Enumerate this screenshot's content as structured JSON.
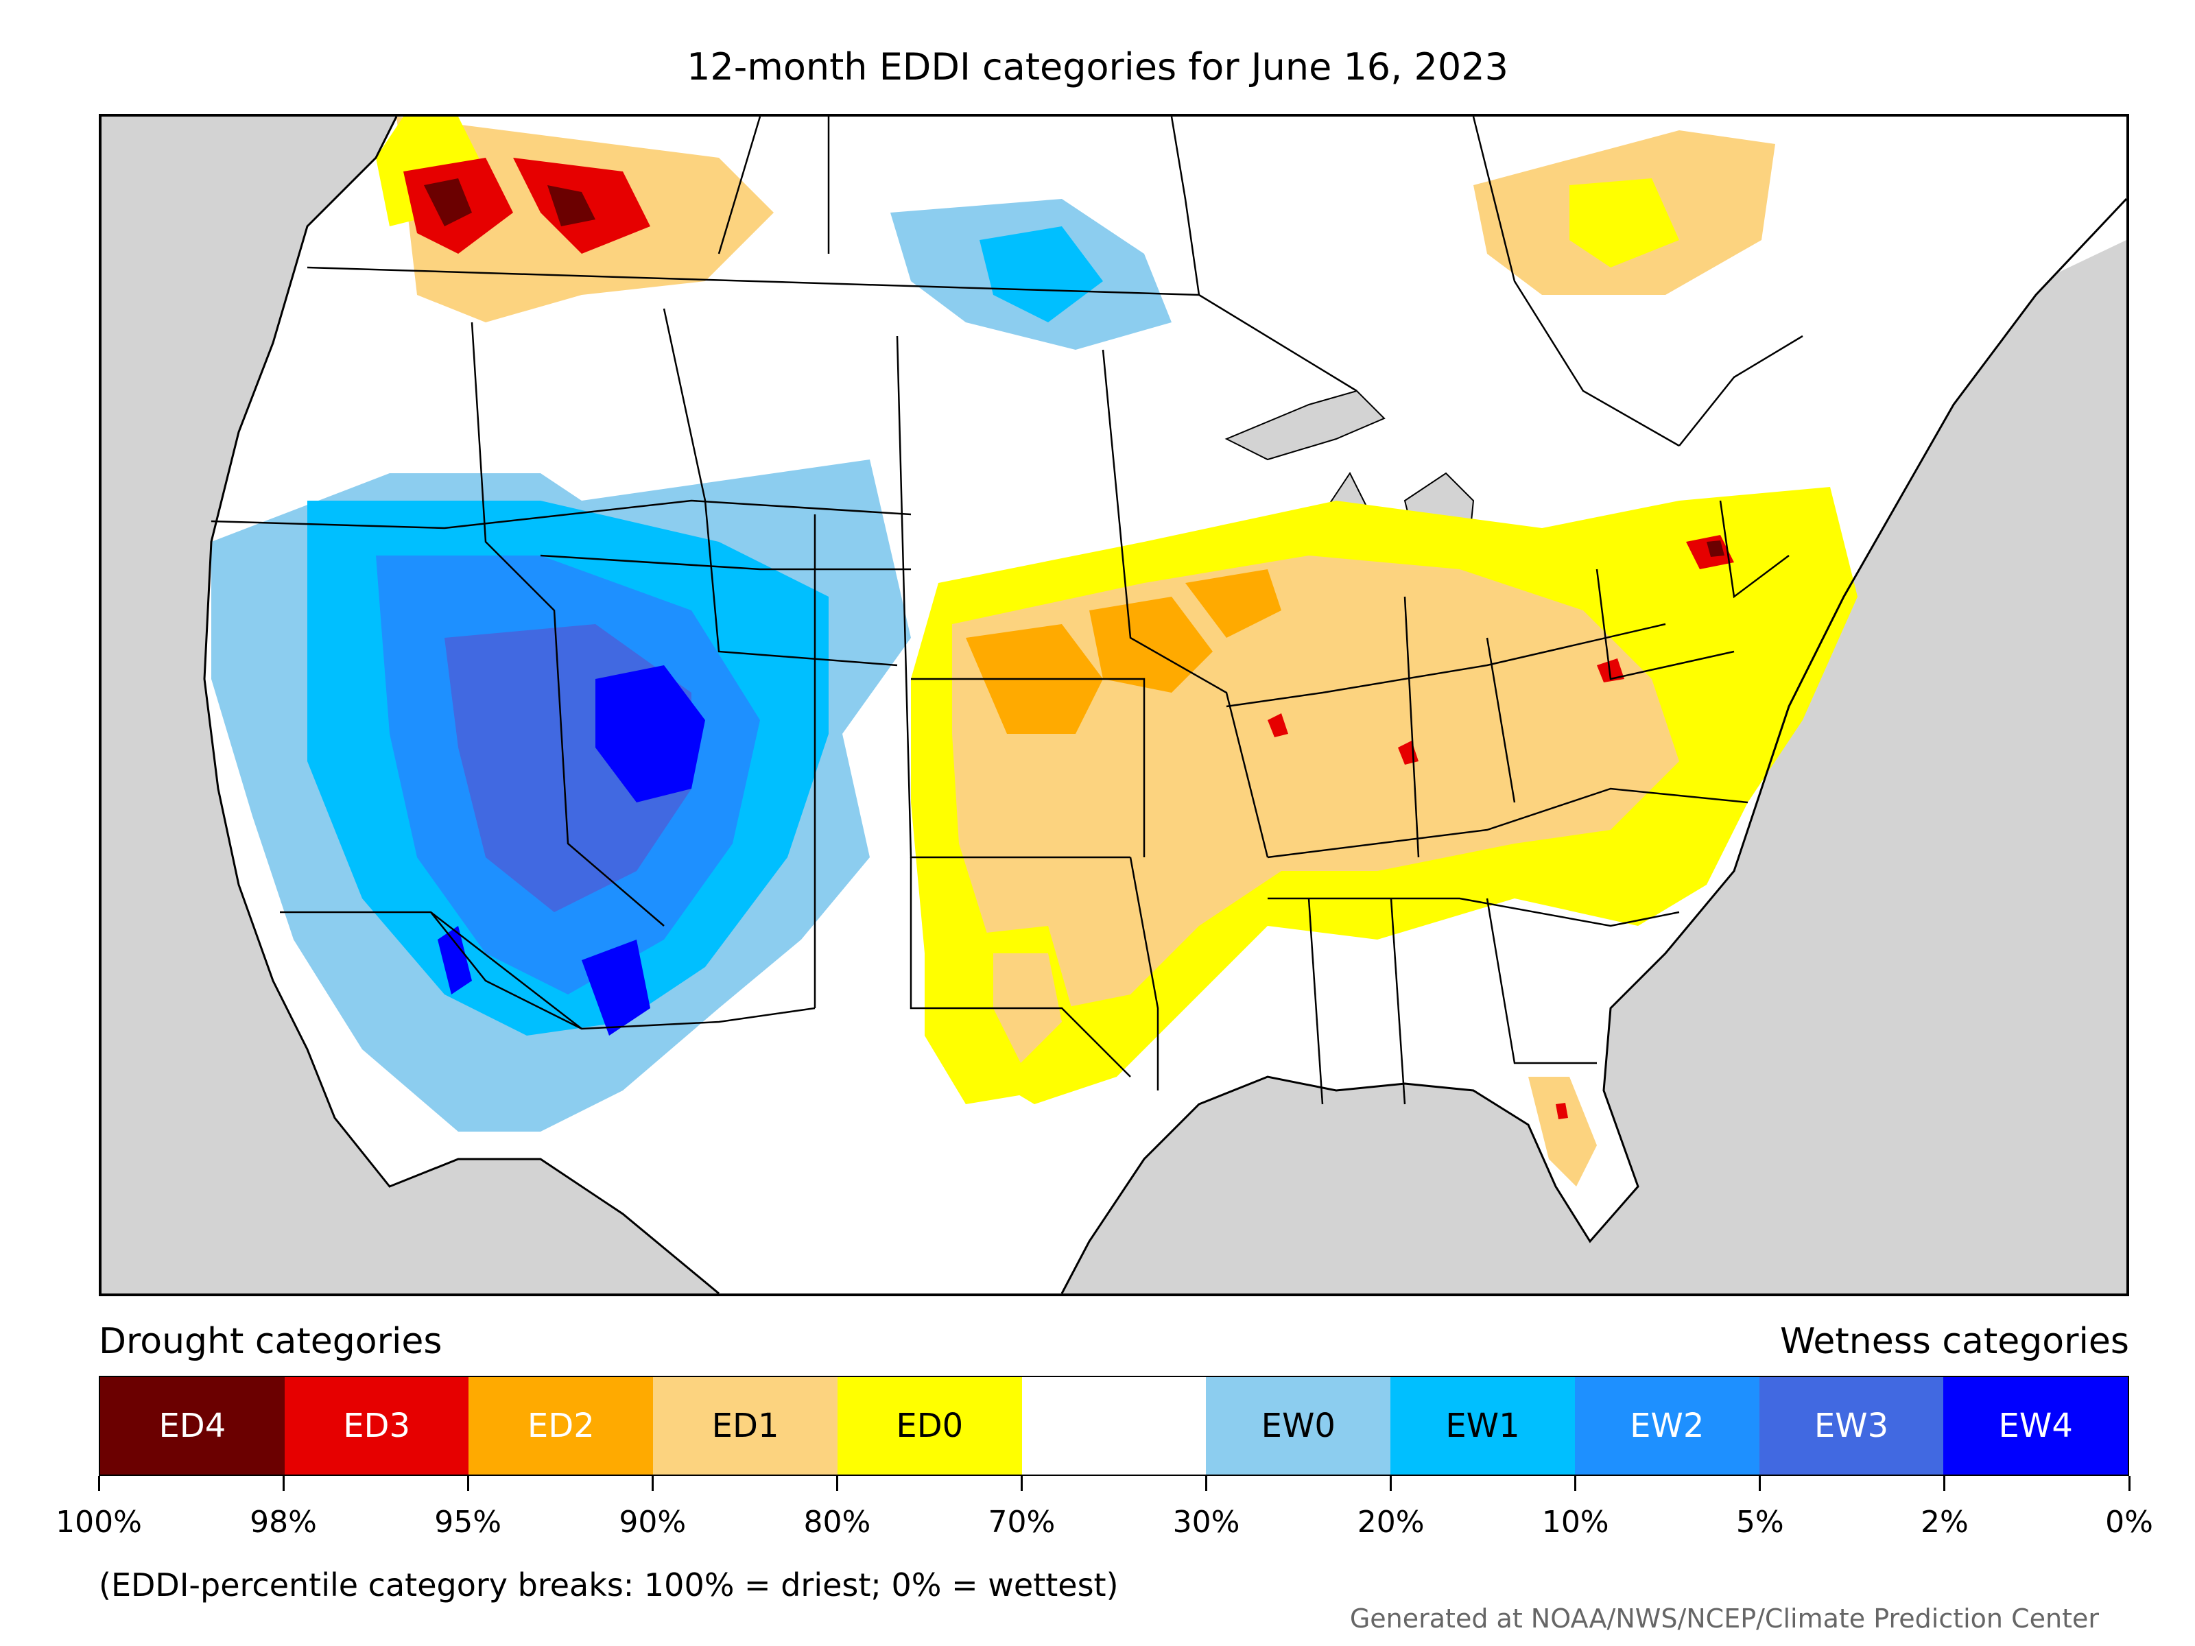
{
  "title": "12-month EDDI categories for June 16, 2023",
  "legend": {
    "drought_heading": "Drought categories",
    "wetness_heading": "Wetness categories",
    "categories": [
      {
        "label": "ED4",
        "color": "#6b0000",
        "text_color": "#ffffff"
      },
      {
        "label": "ED3",
        "color": "#e60000",
        "text_color": "#ffffff"
      },
      {
        "label": "ED2",
        "color": "#ffaa00",
        "text_color": "#ffffff"
      },
      {
        "label": "ED1",
        "color": "#fcd37f",
        "text_color": "#000000"
      },
      {
        "label": "ED0",
        "color": "#ffff00",
        "text_color": "#000000"
      },
      {
        "label": "",
        "color": "#ffffff",
        "text_color": "#000000"
      },
      {
        "label": "EW0",
        "color": "#8ccdef",
        "text_color": "#000000"
      },
      {
        "label": "EW1",
        "color": "#00bfff",
        "text_color": "#000000"
      },
      {
        "label": "EW2",
        "color": "#1e90ff",
        "text_color": "#ffffff"
      },
      {
        "label": "EW3",
        "color": "#4169e1",
        "text_color": "#ffffff"
      },
      {
        "label": "EW4",
        "color": "#0000ff",
        "text_color": "#ffffff"
      }
    ],
    "breaks": [
      "100%",
      "98%",
      "95%",
      "90%",
      "80%",
      "70%",
      "30%",
      "20%",
      "10%",
      "5%",
      "2%",
      "0%"
    ]
  },
  "note": "(EDDI-percentile category breaks: 100% = driest; 0% = wettest)",
  "credit": "Generated at NOAA/NWS/NCEP/Climate Prediction Center",
  "map_colors": {
    "ocean": "#d3d3d3",
    "land": "#ffffff",
    "boundary": "#000000"
  }
}
